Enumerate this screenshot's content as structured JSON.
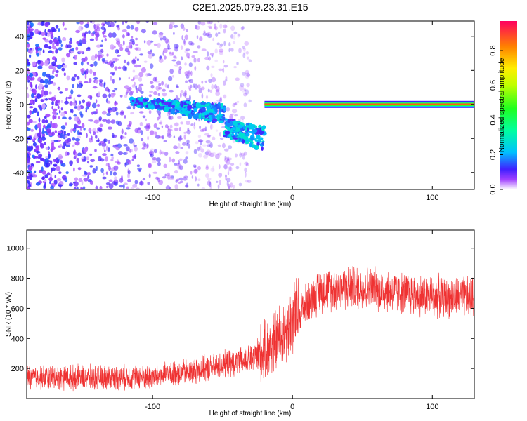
{
  "title": "C2E1.2025.079.23.31.E15",
  "chart_data": [
    {
      "type": "heatmap",
      "xlabel": "Height of straight line (km)",
      "ylabel": "Frequency (Hz)",
      "xlim": [
        -190,
        130
      ],
      "ylim": [
        -50,
        49
      ],
      "xticks": [
        -100,
        0,
        100
      ],
      "xtick_labels": [
        "-100",
        "0",
        "100"
      ],
      "yticks": [
        -40,
        -20,
        0,
        20,
        40
      ],
      "ytick_labels": [
        "-40",
        "-20",
        "0",
        "20",
        "40"
      ],
      "colorbar": {
        "label": "Normalized spectral amplitude",
        "range": [
          0,
          0.97
        ],
        "ticks": [
          0.0,
          0.2,
          0.4,
          0.6,
          0.8
        ],
        "tick_labels": [
          "0.0",
          "0.2",
          "0.4",
          "0.6",
          "0.8"
        ]
      },
      "features": [
        {
          "kind": "scattered-noise",
          "x_range": [
            -190,
            -30
          ],
          "y_range": [
            -50,
            49
          ],
          "amplitude": [
            0.02,
            0.15
          ]
        },
        {
          "kind": "diagonal-band",
          "x_range": [
            -115,
            -20
          ],
          "y_at_start": 2,
          "y_at_end": -20,
          "amplitude": [
            0.1,
            0.3
          ]
        },
        {
          "kind": "steady-line",
          "x_range": [
            -20,
            130
          ],
          "y": 0,
          "amplitude": 0.9
        }
      ]
    },
    {
      "type": "line",
      "xlabel": "Height of straight line (km)",
      "ylabel": "SNR (10 * v/v)",
      "xlim": [
        -190,
        130
      ],
      "ylim": [
        0,
        1120
      ],
      "xticks": [
        -100,
        0,
        100
      ],
      "xtick_labels": [
        "-100",
        "0",
        "100"
      ],
      "yticks": [
        200,
        400,
        600,
        800,
        1000
      ],
      "ytick_labels": [
        "200",
        "400",
        "600",
        "800",
        "1000"
      ],
      "series": [
        {
          "color": "#ef3232",
          "profile_x": [
            -190,
            -140,
            -100,
            -60,
            -45,
            -30,
            -20,
            -15,
            -10,
            0,
            10,
            20,
            40,
            60,
            80,
            100,
            130
          ],
          "profile_mean": [
            140,
            140,
            140,
            200,
            230,
            260,
            310,
            350,
            400,
            530,
            630,
            720,
            740,
            730,
            700,
            680,
            670
          ],
          "noise_amplitude": 110
        }
      ]
    }
  ]
}
